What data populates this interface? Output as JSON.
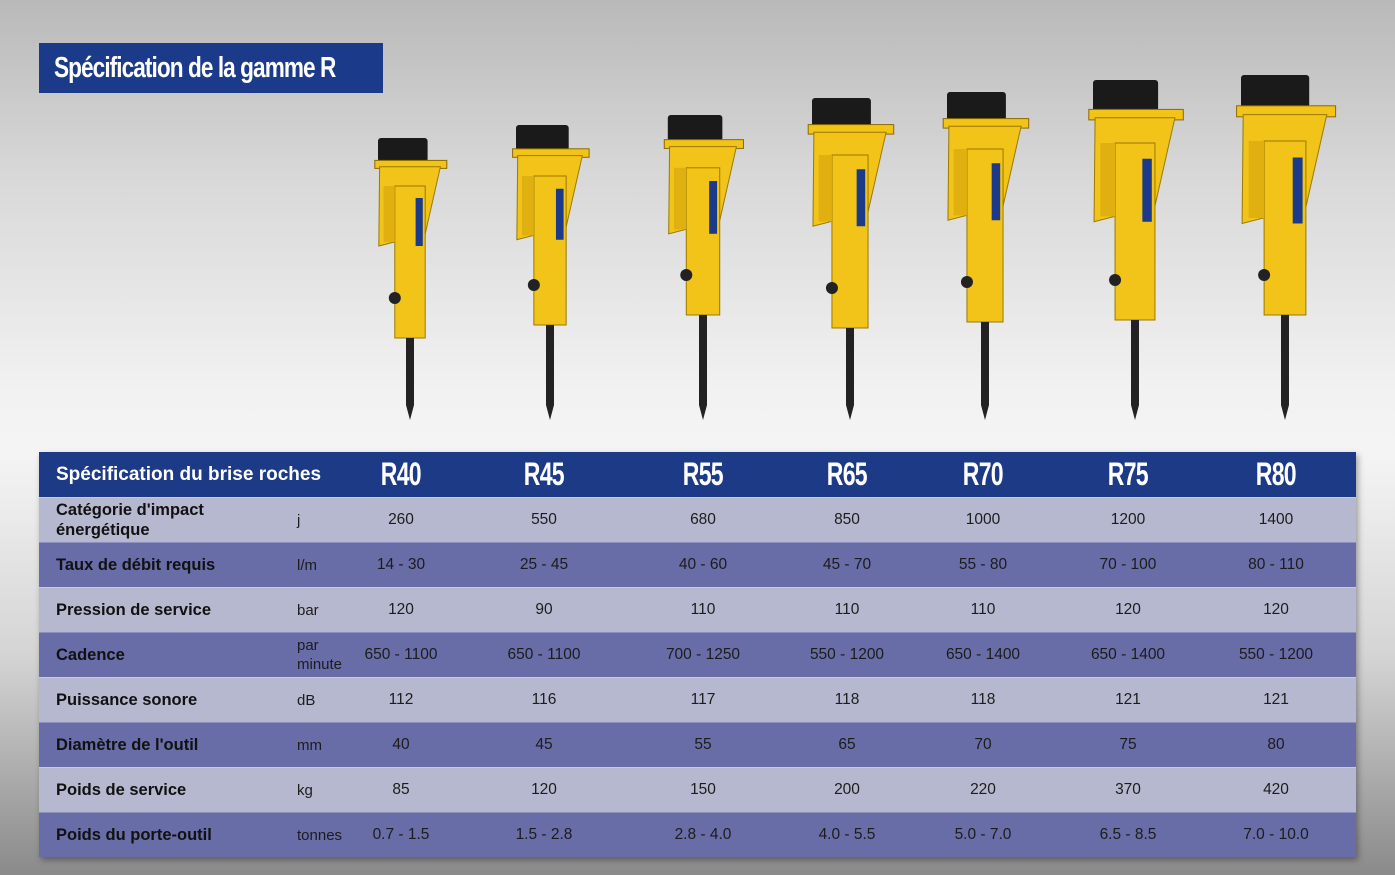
{
  "title": "Spécification de la gamme R",
  "table": {
    "header_label": "Spécification du brise roches",
    "models": [
      "R40",
      "R45",
      "R55",
      "R65",
      "R70",
      "R75",
      "R80"
    ],
    "rows": [
      {
        "label": "Catégorie d'impact énergétique",
        "unit": "j",
        "values": [
          "260",
          "550",
          "680",
          "850",
          "1000",
          "1200",
          "1400"
        ]
      },
      {
        "label": "Taux de débit requis",
        "unit": "l/m",
        "values": [
          "14 - 30",
          "25 - 45",
          "40 - 60",
          "45 - 70",
          "55 - 80",
          "70 - 100",
          "80 - 110"
        ]
      },
      {
        "label": "Pression de service",
        "unit": "bar",
        "values": [
          "120",
          "90",
          "110",
          "110",
          "110",
          "120",
          "120"
        ]
      },
      {
        "label": "Cadence",
        "unit": "par minute",
        "values": [
          "650 - 1100",
          "650 - 1100",
          "700 - 1250",
          "550 - 1200",
          "650 - 1400",
          "650 - 1400",
          "550 - 1200"
        ]
      },
      {
        "label": "Puissance sonore",
        "unit": "dB",
        "values": [
          "112",
          "116",
          "117",
          "118",
          "118",
          "121",
          "121"
        ]
      },
      {
        "label": "Diamètre de l'outil",
        "unit": "mm",
        "values": [
          "40",
          "45",
          "55",
          "65",
          "70",
          "75",
          "80"
        ]
      },
      {
        "label": "Poids de service",
        "unit": "kg",
        "values": [
          "85",
          "120",
          "150",
          "200",
          "220",
          "370",
          "420"
        ]
      },
      {
        "label": "Poids du porte-outil",
        "unit": "tonnes",
        "values": [
          "0.7 - 1.5",
          "1.5 - 2.8",
          "2.8 - 4.0",
          "4.0 - 5.5",
          "5.0 - 7.0",
          "6.5 - 8.5",
          "7.0 - 10.0"
        ]
      }
    ]
  },
  "colors": {
    "header": "#1d3a86",
    "row_light": "#b6b8d0",
    "row_dark": "#686ca7",
    "hammer": "#f2c318"
  }
}
